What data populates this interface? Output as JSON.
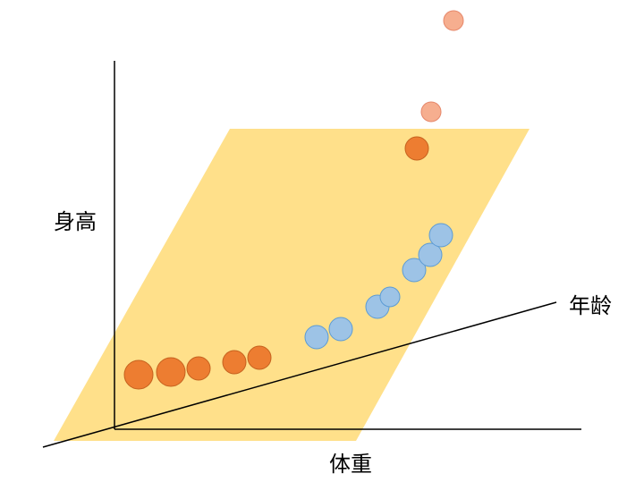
{
  "labels": {
    "height": "身高",
    "age": "年龄",
    "weight": "体重"
  },
  "colors": {
    "plane": "#ffe08a",
    "plane_stroke": "#f2c24c",
    "orange": "#ed7d31",
    "orange_stroke": "#c5611e",
    "light_orange": "#f6ae8f",
    "light_orange_stroke": "#e6876a",
    "blue": "#9dc3e6",
    "blue_stroke": "#5b9bd5",
    "axis": "#000000"
  },
  "points": [
    {
      "group": "orange",
      "size": "large"
    },
    {
      "group": "orange",
      "size": "large"
    },
    {
      "group": "orange",
      "size": "medium"
    },
    {
      "group": "orange",
      "size": "medium"
    },
    {
      "group": "orange",
      "size": "medium"
    },
    {
      "group": "blue",
      "size": "medium"
    },
    {
      "group": "blue",
      "size": "medium"
    },
    {
      "group": "blue",
      "size": "medium"
    },
    {
      "group": "blue",
      "size": "small"
    },
    {
      "group": "blue",
      "size": "medium"
    },
    {
      "group": "blue",
      "size": "medium"
    },
    {
      "group": "blue",
      "size": "medium"
    },
    {
      "group": "orange",
      "size": "medium"
    },
    {
      "group": "light_orange",
      "size": "small"
    },
    {
      "group": "light_orange",
      "size": "small"
    }
  ]
}
